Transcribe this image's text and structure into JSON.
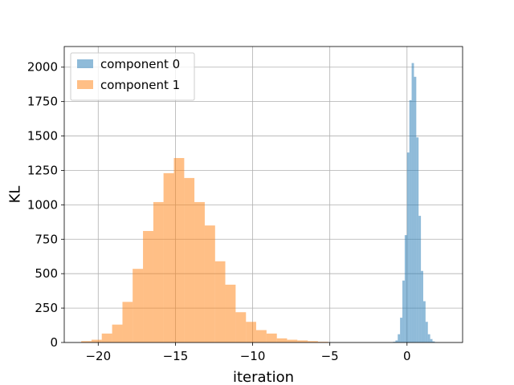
{
  "chart_data": {
    "type": "bar",
    "title": "",
    "xlabel": "iteration",
    "ylabel": "KL",
    "xlim": [
      -22.2,
      3.6
    ],
    "ylim": [
      0,
      2150
    ],
    "xticks": [
      -20,
      -15,
      -10,
      -5,
      0
    ],
    "xtick_labels": [
      "−20",
      "−15",
      "−10",
      "−5",
      "0"
    ],
    "yticks": [
      0,
      250,
      500,
      750,
      1000,
      1250,
      1500,
      1750,
      2000
    ],
    "ytick_labels": [
      "0",
      "250",
      "500",
      "750",
      "1000",
      "1250",
      "1500",
      "1750",
      "2000"
    ],
    "grid": true,
    "legend_position": "top-left",
    "alpha": 0.5,
    "series": [
      {
        "name": "component 0",
        "color": "#1f77b4",
        "edges": [
          -0.9,
          -0.75,
          -0.6,
          -0.45,
          -0.3,
          -0.15,
          0,
          0.15,
          0.3,
          0.45,
          0.6,
          0.75,
          0.9,
          1.05,
          1.2,
          1.35,
          1.5,
          1.65,
          1.8,
          1.95
        ],
        "values": [
          5,
          15,
          60,
          180,
          450,
          780,
          1380,
          1760,
          2030,
          1930,
          1490,
          920,
          520,
          300,
          150,
          60,
          25,
          8,
          2
        ]
      },
      {
        "name": "component 1",
        "color": "#ff7f0e",
        "edges": [
          -21.1,
          -20.43,
          -19.77,
          -19.1,
          -18.43,
          -17.77,
          -17.1,
          -16.43,
          -15.77,
          -15.1,
          -14.43,
          -13.77,
          -13.1,
          -12.43,
          -11.77,
          -11.1,
          -10.43,
          -9.77,
          -9.1,
          -8.43,
          -7.77,
          -7.1,
          -6.43,
          -5.77,
          -5.1,
          -4.43
        ],
        "values": [
          10,
          20,
          65,
          130,
          295,
          535,
          810,
          1020,
          1230,
          1340,
          1195,
          1020,
          850,
          590,
          420,
          220,
          150,
          90,
          65,
          30,
          20,
          15,
          10,
          5,
          0
        ]
      }
    ]
  }
}
